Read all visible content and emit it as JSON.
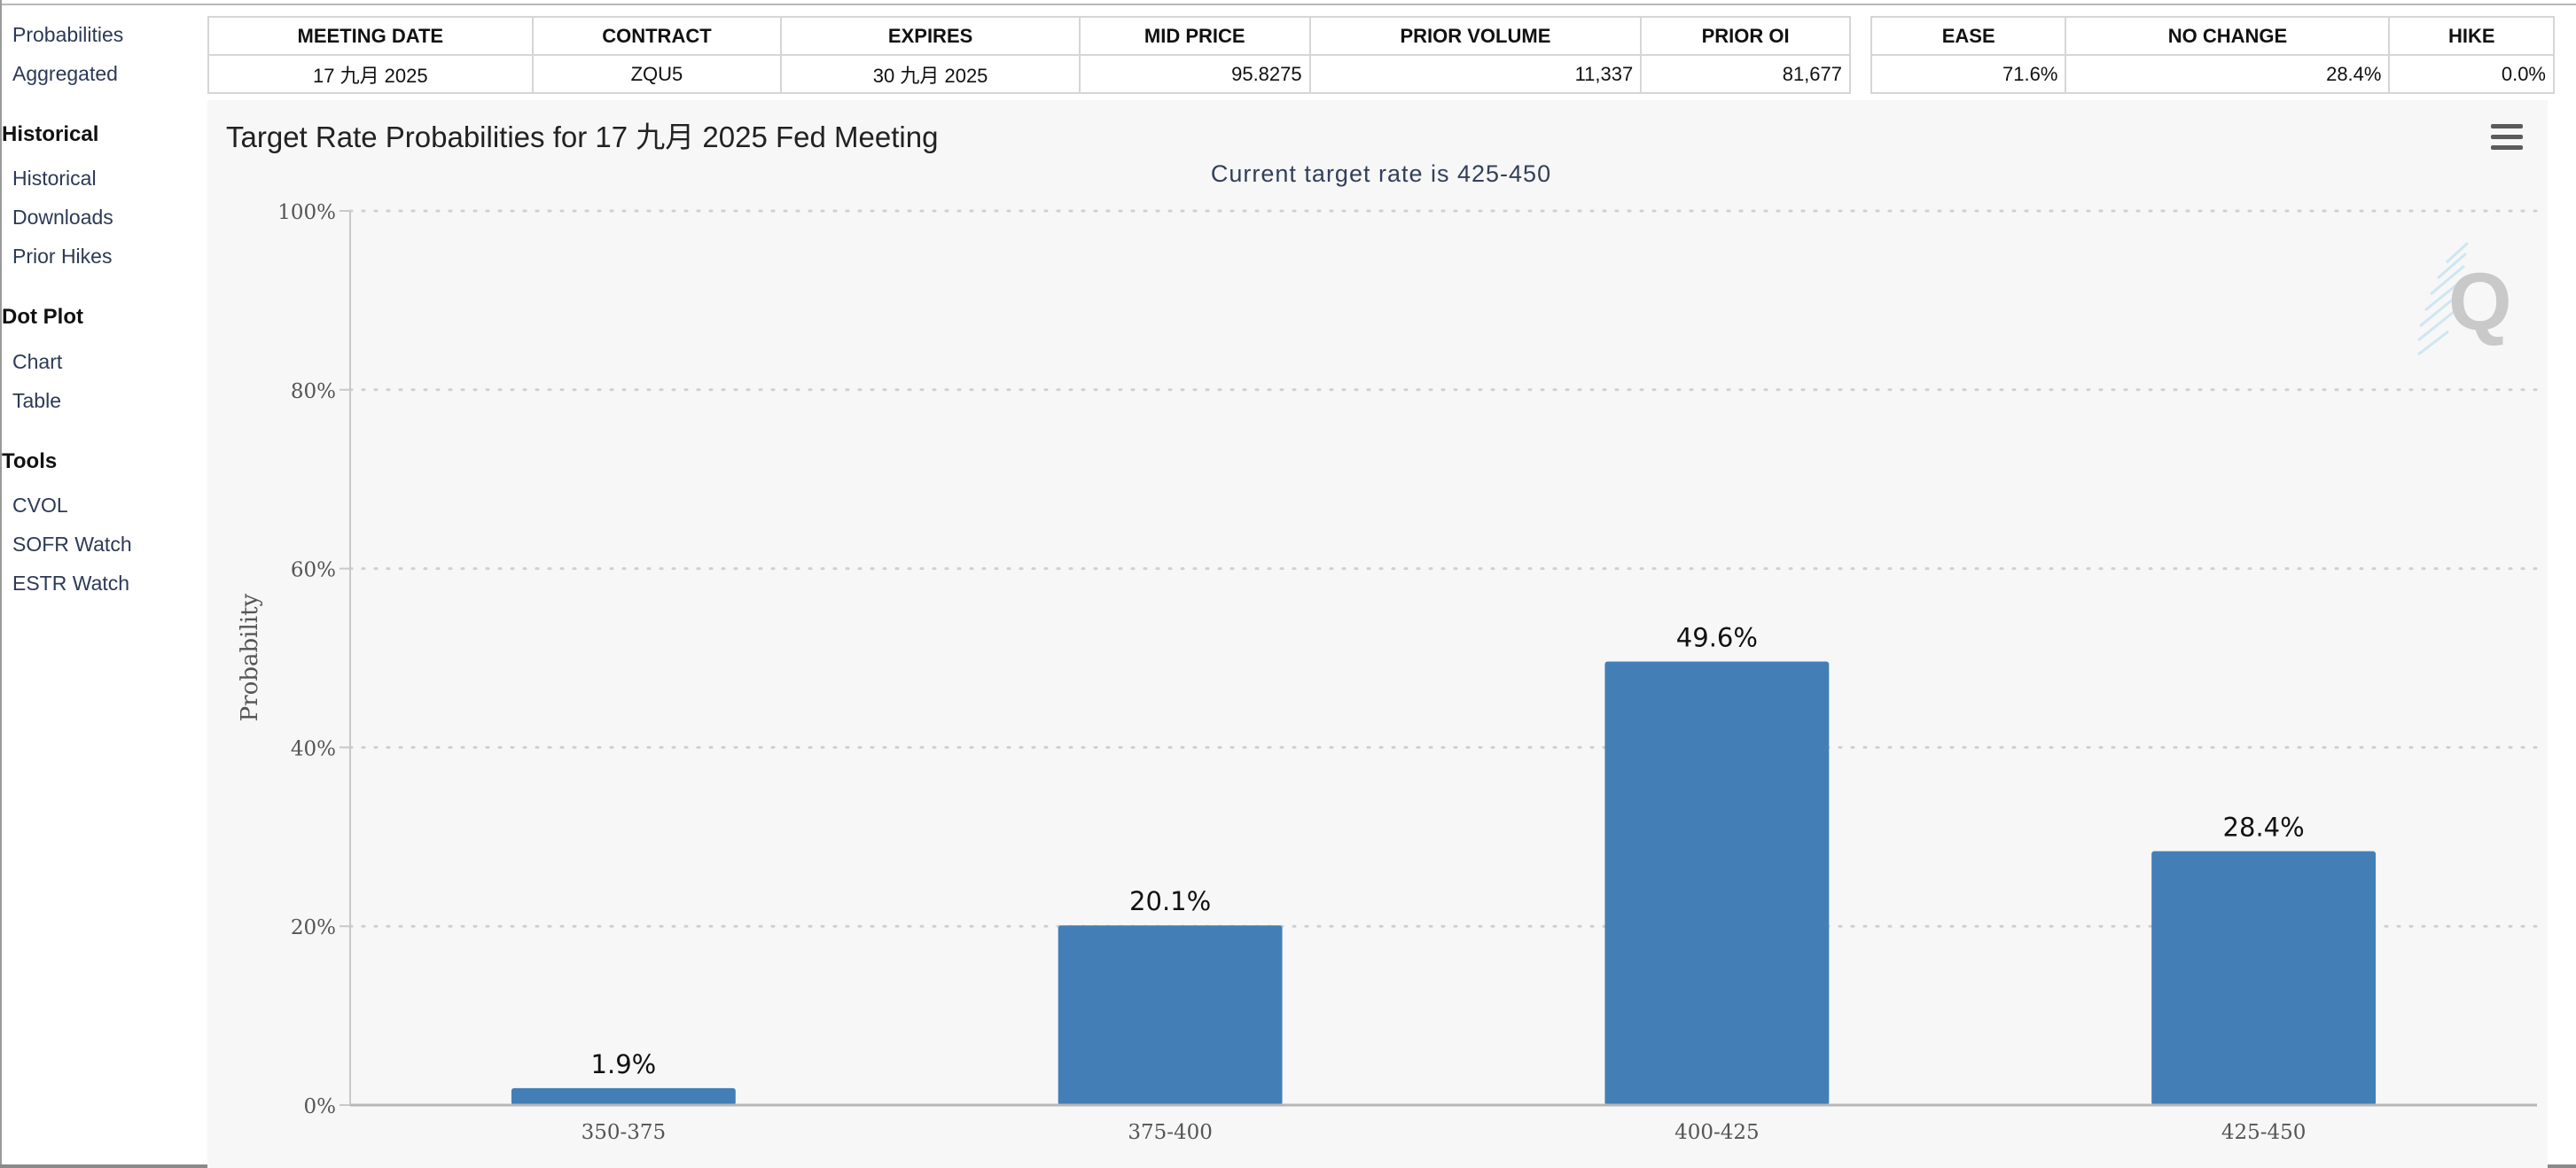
{
  "sidebar": {
    "links_top": [
      "Probabilities",
      "Aggregated"
    ],
    "sections": [
      {
        "title": "Historical",
        "links": [
          "Historical",
          "Downloads",
          "Prior Hikes"
        ]
      },
      {
        "title": "Dot Plot",
        "links": [
          "Chart",
          "Table"
        ]
      },
      {
        "title": "Tools",
        "links": [
          "CVOL",
          "SOFR Watch",
          "ESTR Watch"
        ]
      }
    ]
  },
  "contract_table": {
    "headers": [
      "MEETING DATE",
      "CONTRACT",
      "EXPIRES",
      "MID PRICE",
      "PRIOR VOLUME",
      "PRIOR OI"
    ],
    "row": [
      "17 九月 2025",
      "ZQU5",
      "30 九月 2025",
      "95.8275",
      "11,337",
      "81,677"
    ]
  },
  "summary_table": {
    "headers": [
      "EASE",
      "NO CHANGE",
      "HIKE"
    ],
    "row": [
      "71.6%",
      "28.4%",
      "0.0%"
    ]
  },
  "chart": {
    "title": "Target Rate Probabilities for 17 九月 2025 Fed Meeting",
    "subtitle": "Current target rate is 425-450",
    "watermark": "Q",
    "bar_color": "#437fb6",
    "menu_icon": "hamburger-menu-icon"
  },
  "chart_data": {
    "type": "bar",
    "title": "Target Rate Probabilities for 17 九月 2025 Fed Meeting",
    "subtitle": "Current target rate is 425-450",
    "categories": [
      "350-375",
      "375-400",
      "400-425",
      "425-450"
    ],
    "values": [
      1.9,
      20.1,
      49.6,
      28.4
    ],
    "data_labels": [
      "1.9%",
      "20.1%",
      "49.6%",
      "28.4%"
    ],
    "ylabel": "Probability",
    "xlabel": "",
    "ylim": [
      0,
      100
    ],
    "yticks": [
      0,
      20,
      40,
      60,
      80,
      100
    ],
    "ytick_labels": [
      "0%",
      "20%",
      "40%",
      "60%",
      "80%",
      "100%"
    ],
    "grid": true,
    "legend": "none"
  }
}
